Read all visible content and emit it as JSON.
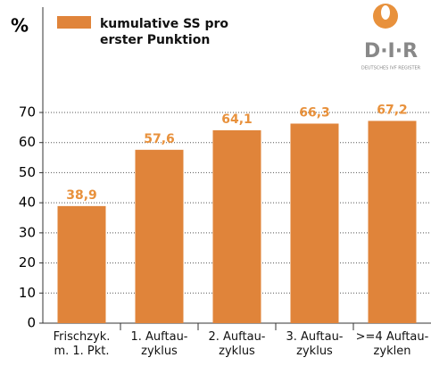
{
  "chart_data": {
    "type": "bar",
    "ylabel": "%",
    "categories": [
      "Frischzyk.\nm. 1. Pkt.",
      "1. Auftau-\nzyklus",
      "2. Auftau-\nzyklus",
      "3. Auftau-\nzyklus",
      ">=4 Auftau-\nzyklen"
    ],
    "series": [
      {
        "name": "kumulative SS pro\nerster Punktion",
        "color": "#e0843a",
        "values": [
          38.9,
          57.6,
          64.1,
          66.3,
          67.2
        ],
        "value_labels": [
          "38,9",
          "57,6",
          "64,1",
          "66,3",
          "67,2"
        ]
      }
    ],
    "ylim": [
      0,
      70
    ],
    "yticks": [
      0,
      10,
      20,
      30,
      40,
      50,
      60,
      70
    ],
    "grid": true
  },
  "logo": {
    "text": "D·I·R",
    "subtitle": "DEUTSCHES IVF REGISTER"
  }
}
